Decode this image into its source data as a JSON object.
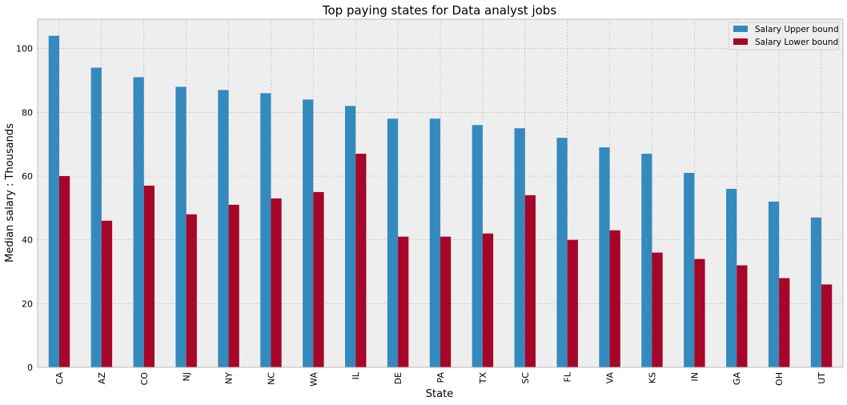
{
  "chart_data": {
    "type": "bar",
    "title": "Top paying states for Data analyst jobs",
    "xlabel": "State",
    "ylabel": "Median salary : Thousands",
    "categories": [
      "CA",
      "AZ",
      "CO",
      "NJ",
      "NY",
      "NC",
      "WA",
      "IL",
      "DE",
      "PA",
      "TX",
      "SC",
      "FL",
      "VA",
      "KS",
      "IN",
      "GA",
      "OH",
      "UT"
    ],
    "series": [
      {
        "name": "Salary Upper bound",
        "color": "#348ABD",
        "values": [
          104,
          94,
          91,
          88,
          87,
          86,
          84,
          82,
          78,
          78,
          76,
          75,
          72,
          69,
          67,
          61,
          56,
          52,
          47
        ]
      },
      {
        "name": "Salary Lower bound",
        "color": "#A60628",
        "values": [
          60,
          46,
          57,
          48,
          51,
          53,
          55,
          67,
          41,
          41,
          42,
          54,
          40,
          43,
          36,
          34,
          32,
          28,
          26
        ]
      }
    ],
    "ylim": [
      0,
      109.2
    ],
    "yticks": [
      0,
      20,
      40,
      60,
      80,
      100
    ],
    "grid": true,
    "legend_position": "top-right",
    "background_color": "#EEEEEE",
    "grid_color": "#B2B2B2"
  }
}
